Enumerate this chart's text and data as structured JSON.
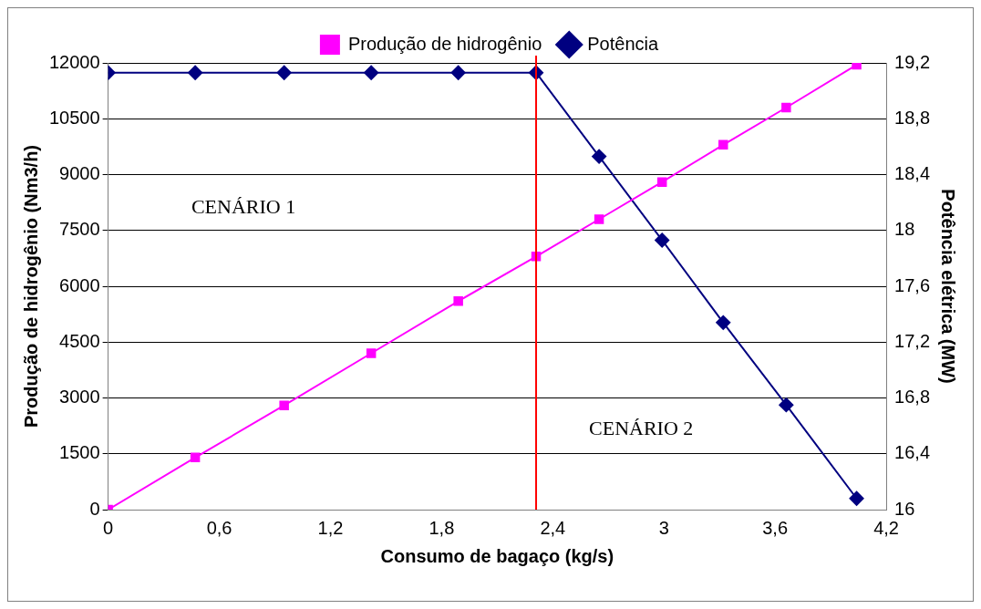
{
  "chart_data": {
    "type": "line",
    "xlabel": "Consumo de bagaço (kg/s)",
    "ylabel": "Produção de hidrogênio (Nm3/h)",
    "y2label": "Potência elétrica (MW)",
    "series": [
      {
        "name": "Produção de hidrogênio",
        "color": "#ff00ff",
        "marker": "square",
        "x": [
          0,
          0.47,
          0.95,
          1.42,
          1.89,
          2.31,
          2.65,
          2.99,
          3.32,
          3.66,
          4.04
        ],
        "values": [
          0,
          1400,
          2800,
          4200,
          5600,
          6800,
          7800,
          8800,
          9800,
          10800,
          11950
        ]
      },
      {
        "name": "Potência",
        "color": "#000080",
        "marker": "diamond",
        "axis": "y2",
        "x": [
          0,
          0.47,
          0.95,
          1.42,
          1.89,
          2.31,
          2.65,
          2.99,
          3.32,
          3.66,
          4.04
        ],
        "values": [
          19.13,
          19.13,
          19.13,
          19.13,
          19.13,
          19.13,
          18.53,
          17.93,
          17.34,
          16.75,
          16.08
        ]
      }
    ],
    "xlim": [
      0,
      4.2
    ],
    "xticks": [
      0,
      {
        "value": 0.6,
        "label": "0,6"
      },
      {
        "value": 1.2,
        "label": "1,2"
      },
      {
        "value": 1.8,
        "label": "1,8"
      },
      {
        "value": 2.4,
        "label": "2,4"
      },
      3,
      {
        "value": 3.6,
        "label": "3,6"
      },
      {
        "value": 4.2,
        "label": "4,2"
      }
    ],
    "ylim": [
      0,
      12000
    ],
    "yticks": [
      0,
      1500,
      3000,
      4500,
      6000,
      7500,
      9000,
      10500,
      12000
    ],
    "y2lim": [
      16,
      19.2
    ],
    "y2ticks": [
      16,
      {
        "value": 16.4,
        "label": "16,4"
      },
      {
        "value": 16.8,
        "label": "16,8"
      },
      {
        "value": 17.2,
        "label": "17,2"
      },
      {
        "value": 17.6,
        "label": "17,6"
      },
      18,
      {
        "value": 18.4,
        "label": "18,4"
      },
      {
        "value": 18.8,
        "label": "18,8"
      },
      {
        "value": 19.2,
        "label": "19,2"
      }
    ],
    "ref_lines": [
      {
        "axis": "x",
        "value": 2.31,
        "color": "#ff0000"
      }
    ],
    "annotations": [
      "CENÁRIO 1",
      "CENÁRIO 2"
    ],
    "grid": "y",
    "legend": "top",
    "line_style": "solid"
  }
}
